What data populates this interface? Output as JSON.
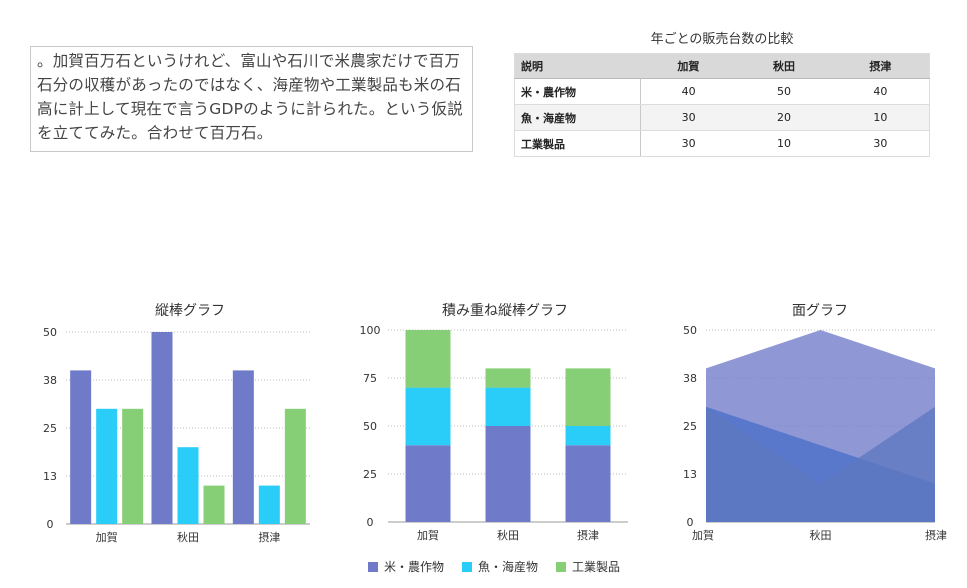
{
  "note": {
    "text": "。加賀百万石というけれど、富山や石川で米農家だけで百万石分の収穫があったのではなく、海産物や工業製品も米の石高に計上して現在で言うGDPのように計られた。という仮説を立ててみた。合わせて百万石。"
  },
  "table": {
    "title": "年ごとの販売台数の比較",
    "headers": [
      "説明",
      "加賀",
      "秋田",
      "摂津"
    ],
    "rows": [
      [
        "米・農作物",
        "40",
        "50",
        "40"
      ],
      [
        "魚・海産物",
        "30",
        "20",
        "10"
      ],
      [
        "工業製品",
        "30",
        "10",
        "30"
      ]
    ]
  },
  "colors": {
    "rice": "#6f7bc9",
    "fish": "#29cdf7",
    "industry": "#86cf76"
  },
  "legend": [
    "米・農作物",
    "魚・海産物",
    "工業製品"
  ],
  "chart_data": [
    {
      "type": "bar",
      "title": "縦棒グラフ",
      "categories": [
        "加賀",
        "秋田",
        "摂津"
      ],
      "series": [
        {
          "name": "米・農作物",
          "values": [
            40,
            50,
            40
          ]
        },
        {
          "name": "魚・海産物",
          "values": [
            30,
            20,
            10
          ]
        },
        {
          "name": "工業製品",
          "values": [
            30,
            10,
            30
          ]
        }
      ],
      "yticks": [
        "0",
        "13",
        "25",
        "38",
        "50"
      ],
      "ylim": [
        0,
        50
      ],
      "grid": true
    },
    {
      "type": "bar",
      "stacked": true,
      "title": "積み重ね縦棒グラフ",
      "categories": [
        "加賀",
        "秋田",
        "摂津"
      ],
      "series": [
        {
          "name": "米・農作物",
          "values": [
            40,
            50,
            40
          ]
        },
        {
          "name": "魚・海産物",
          "values": [
            30,
            20,
            10
          ]
        },
        {
          "name": "工業製品",
          "values": [
            30,
            10,
            30
          ]
        }
      ],
      "yticks": [
        "0",
        "25",
        "50",
        "75",
        "100"
      ],
      "ylim": [
        0,
        100
      ],
      "grid": true
    },
    {
      "type": "area",
      "title": "面グラフ",
      "categories": [
        "加賀",
        "秋田",
        "摂津"
      ],
      "series": [
        {
          "name": "米・農作物",
          "values": [
            40,
            50,
            40
          ]
        },
        {
          "name": "魚・海産物",
          "values": [
            30,
            20,
            10
          ]
        },
        {
          "name": "工業製品",
          "values": [
            30,
            10,
            30
          ]
        }
      ],
      "yticks": [
        "0",
        "13",
        "25",
        "38",
        "50"
      ],
      "ylim": [
        0,
        50
      ],
      "grid": true
    }
  ]
}
